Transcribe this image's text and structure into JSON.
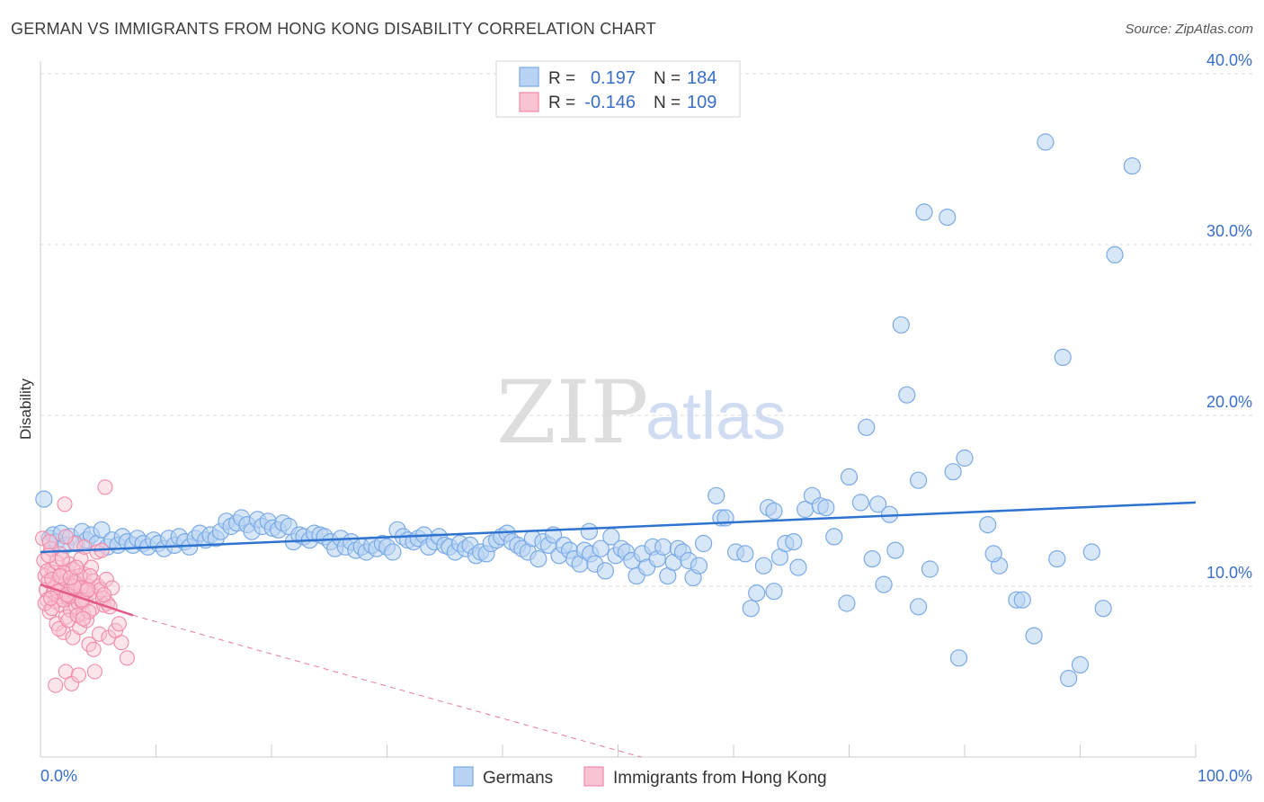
{
  "title": "GERMAN VS IMMIGRANTS FROM HONG KONG DISABILITY CORRELATION CHART",
  "source": "Source: ZipAtlas.com",
  "watermark": {
    "zip": "ZIP",
    "atlas": "atlas"
  },
  "colors": {
    "blue": "#7aaae6",
    "blue_fill": "#b8d3f3",
    "blue_line": "#2f73d0",
    "pink": "#f08aa8",
    "pink_fill": "#f8c4d3",
    "pink_line": "#e45a85",
    "tick_text": "#3a6ec9",
    "grid": "#d8d8d8"
  },
  "legend": {
    "rows": [
      {
        "r_label": "R =",
        "r_value": "0.197",
        "n_label": "N =",
        "n_value": "184"
      },
      {
        "r_label": "R =",
        "r_value": "-0.146",
        "n_label": "N =",
        "n_value": "109"
      }
    ]
  },
  "bottom_legend": [
    "Germans",
    "Immigrants from Hong Kong"
  ],
  "chart_data": {
    "type": "scatter",
    "title": "GERMAN VS IMMIGRANTS FROM HONG KONG DISABILITY CORRELATION CHART",
    "xlabel": "",
    "ylabel": "Disability",
    "xlim": [
      0,
      100
    ],
    "ylim": [
      0,
      40
    ],
    "x_tick_labels": [
      "0.0%",
      "100.0%"
    ],
    "y_ticks": [
      10,
      20,
      30,
      40
    ],
    "y_tick_labels": [
      "10.0%",
      "20.0%",
      "30.0%",
      "40.0%"
    ],
    "grid": true,
    "legend_position": "top-center",
    "series": [
      {
        "name": "Germans",
        "r": 0.197,
        "n": 184,
        "trend": {
          "x": [
            0,
            100
          ],
          "y": [
            12.0,
            14.9
          ]
        },
        "points": [
          [
            0.3,
            15.1
          ],
          [
            0.8,
            12.8
          ],
          [
            1.1,
            13.0
          ],
          [
            1.4,
            12.6
          ],
          [
            1.8,
            13.1
          ],
          [
            2.2,
            12.4
          ],
          [
            2.6,
            12.9
          ],
          [
            3.1,
            12.5
          ],
          [
            3.6,
            13.2
          ],
          [
            4.0,
            12.7
          ],
          [
            4.4,
            13.0
          ],
          [
            4.9,
            12.5
          ],
          [
            5.3,
            13.3
          ],
          [
            5.8,
            12.3
          ],
          [
            6.2,
            12.7
          ],
          [
            6.7,
            12.4
          ],
          [
            7.1,
            12.9
          ],
          [
            7.5,
            12.6
          ],
          [
            8.0,
            12.4
          ],
          [
            8.4,
            12.8
          ],
          [
            8.9,
            12.5
          ],
          [
            9.3,
            12.3
          ],
          [
            9.8,
            12.7
          ],
          [
            10.2,
            12.5
          ],
          [
            10.7,
            12.2
          ],
          [
            11.1,
            12.8
          ],
          [
            11.6,
            12.4
          ],
          [
            12.0,
            12.9
          ],
          [
            12.5,
            12.6
          ],
          [
            12.9,
            12.3
          ],
          [
            13.4,
            12.8
          ],
          [
            13.8,
            13.1
          ],
          [
            14.3,
            12.7
          ],
          [
            14.7,
            13.0
          ],
          [
            15.2,
            12.8
          ],
          [
            15.6,
            13.2
          ],
          [
            16.1,
            13.8
          ],
          [
            16.5,
            13.5
          ],
          [
            17.0,
            13.7
          ],
          [
            17.4,
            14.0
          ],
          [
            17.9,
            13.6
          ],
          [
            18.3,
            13.2
          ],
          [
            18.8,
            13.9
          ],
          [
            19.2,
            13.5
          ],
          [
            19.7,
            13.8
          ],
          [
            20.1,
            13.4
          ],
          [
            20.6,
            13.3
          ],
          [
            21.0,
            13.7
          ],
          [
            21.5,
            13.5
          ],
          [
            21.9,
            12.6
          ],
          [
            22.4,
            13.0
          ],
          [
            22.8,
            12.9
          ],
          [
            23.3,
            12.7
          ],
          [
            23.7,
            13.1
          ],
          [
            24.2,
            13.0
          ],
          [
            24.6,
            12.9
          ],
          [
            25.1,
            12.6
          ],
          [
            25.5,
            12.2
          ],
          [
            26.0,
            12.8
          ],
          [
            26.4,
            12.3
          ],
          [
            26.9,
            12.6
          ],
          [
            27.3,
            12.1
          ],
          [
            27.8,
            12.3
          ],
          [
            28.2,
            12.0
          ],
          [
            28.7,
            12.4
          ],
          [
            29.1,
            12.2
          ],
          [
            29.6,
            12.5
          ],
          [
            30.0,
            12.3
          ],
          [
            30.5,
            12.0
          ],
          [
            30.9,
            13.3
          ],
          [
            31.4,
            12.9
          ],
          [
            31.8,
            12.7
          ],
          [
            32.3,
            12.6
          ],
          [
            32.7,
            12.8
          ],
          [
            33.2,
            13.0
          ],
          [
            33.6,
            12.3
          ],
          [
            34.1,
            12.6
          ],
          [
            34.5,
            12.9
          ],
          [
            35.0,
            12.4
          ],
          [
            35.4,
            12.3
          ],
          [
            35.9,
            12.0
          ],
          [
            36.3,
            12.5
          ],
          [
            36.8,
            12.2
          ],
          [
            37.2,
            12.4
          ],
          [
            37.7,
            11.8
          ],
          [
            38.1,
            12.0
          ],
          [
            38.6,
            11.9
          ],
          [
            39.0,
            12.5
          ],
          [
            39.5,
            12.7
          ],
          [
            39.9,
            12.9
          ],
          [
            40.4,
            13.1
          ],
          [
            40.8,
            12.6
          ],
          [
            41.3,
            12.4
          ],
          [
            41.7,
            12.2
          ],
          [
            42.2,
            12.0
          ],
          [
            42.6,
            12.8
          ],
          [
            43.1,
            11.6
          ],
          [
            43.5,
            12.6
          ],
          [
            44.0,
            12.4
          ],
          [
            44.4,
            13.0
          ],
          [
            44.9,
            11.8
          ],
          [
            45.3,
            12.4
          ],
          [
            45.8,
            12.1
          ],
          [
            46.2,
            11.6
          ],
          [
            46.7,
            11.3
          ],
          [
            47.1,
            12.1
          ],
          [
            47.6,
            11.9
          ],
          [
            48.0,
            11.3
          ],
          [
            48.5,
            12.2
          ],
          [
            48.9,
            10.9
          ],
          [
            49.4,
            12.9
          ],
          [
            49.8,
            11.8
          ],
          [
            50.3,
            12.2
          ],
          [
            50.7,
            12.0
          ],
          [
            51.2,
            11.5
          ],
          [
            51.6,
            10.6
          ],
          [
            52.1,
            11.9
          ],
          [
            52.5,
            11.1
          ],
          [
            53.0,
            12.3
          ],
          [
            53.4,
            11.6
          ],
          [
            53.9,
            12.3
          ],
          [
            54.3,
            10.6
          ],
          [
            54.8,
            11.4
          ],
          [
            55.2,
            12.2
          ],
          [
            55.6,
            12.0
          ],
          [
            56.1,
            11.5
          ],
          [
            56.5,
            10.5
          ],
          [
            57.0,
            11.2
          ],
          [
            57.4,
            12.5
          ],
          [
            58.5,
            15.3
          ],
          [
            58.9,
            14.0
          ],
          [
            59.3,
            14.0
          ],
          [
            60.2,
            12.0
          ],
          [
            61.0,
            11.9
          ],
          [
            61.5,
            8.7
          ],
          [
            62.0,
            9.6
          ],
          [
            62.6,
            11.2
          ],
          [
            63.0,
            14.6
          ],
          [
            63.5,
            9.7
          ],
          [
            64.0,
            11.7
          ],
          [
            64.5,
            12.5
          ],
          [
            65.2,
            12.6
          ],
          [
            65.6,
            11.1
          ],
          [
            66.2,
            14.5
          ],
          [
            66.8,
            15.3
          ],
          [
            67.5,
            14.7
          ],
          [
            68.0,
            14.6
          ],
          [
            68.7,
            12.9
          ],
          [
            69.8,
            9.0
          ],
          [
            70.0,
            16.4
          ],
          [
            71.0,
            14.9
          ],
          [
            71.5,
            19.3
          ],
          [
            72.0,
            11.6
          ],
          [
            72.5,
            14.8
          ],
          [
            73.0,
            10.1
          ],
          [
            73.5,
            14.2
          ],
          [
            74.0,
            12.1
          ],
          [
            74.5,
            25.3
          ],
          [
            75.0,
            21.2
          ],
          [
            76.0,
            8.8
          ],
          [
            76.5,
            31.9
          ],
          [
            77.0,
            11.0
          ],
          [
            78.5,
            31.6
          ],
          [
            79.0,
            16.7
          ],
          [
            80.0,
            17.5
          ],
          [
            82.0,
            13.6
          ],
          [
            83.0,
            11.2
          ],
          [
            84.5,
            9.2
          ],
          [
            85.0,
            9.2
          ],
          [
            86.0,
            7.1
          ],
          [
            87.0,
            36.0
          ],
          [
            88.5,
            23.4
          ],
          [
            89.0,
            4.6
          ],
          [
            90.0,
            5.4
          ],
          [
            91.0,
            12.0
          ],
          [
            92.0,
            8.7
          ],
          [
            93.0,
            29.4
          ],
          [
            94.5,
            34.6
          ],
          [
            76.0,
            16.2
          ],
          [
            79.5,
            5.8
          ],
          [
            82.5,
            11.9
          ],
          [
            88.0,
            11.6
          ],
          [
            63.5,
            14.4
          ],
          [
            47.5,
            13.2
          ]
        ]
      },
      {
        "name": "Immigrants from Hong Kong",
        "r": -0.146,
        "n": 109,
        "trend": {
          "x": [
            0,
            8
          ],
          "y": [
            10.1,
            8.3
          ]
        },
        "trend_dashed": {
          "x": [
            8,
            52
          ],
          "y": [
            8.3,
            0
          ]
        },
        "points": [
          [
            0.2,
            12.8
          ],
          [
            0.3,
            11.5
          ],
          [
            0.4,
            10.6
          ],
          [
            0.5,
            9.8
          ],
          [
            0.6,
            9.2
          ],
          [
            0.7,
            10.3
          ],
          [
            0.8,
            8.5
          ],
          [
            0.9,
            12.2
          ],
          [
            1.0,
            11.0
          ],
          [
            1.1,
            9.6
          ],
          [
            1.2,
            10.8
          ],
          [
            1.3,
            9.1
          ],
          [
            1.4,
            7.8
          ],
          [
            1.5,
            10.2
          ],
          [
            1.6,
            9.4
          ],
          [
            1.7,
            11.9
          ],
          [
            1.8,
            8.9
          ],
          [
            1.9,
            10.5
          ],
          [
            2.0,
            7.3
          ],
          [
            2.1,
            9.7
          ],
          [
            2.2,
            8.2
          ],
          [
            2.3,
            10.9
          ],
          [
            2.4,
            9.3
          ],
          [
            2.5,
            11.3
          ],
          [
            2.6,
            8.6
          ],
          [
            2.7,
            10.1
          ],
          [
            2.8,
            7.0
          ],
          [
            2.9,
            9.5
          ],
          [
            3.0,
            12.5
          ],
          [
            3.1,
            8.8
          ],
          [
            3.2,
            10.4
          ],
          [
            3.3,
            9.0
          ],
          [
            3.4,
            7.6
          ],
          [
            3.5,
            11.6
          ],
          [
            3.6,
            9.9
          ],
          [
            3.7,
            8.4
          ],
          [
            3.8,
            10.7
          ],
          [
            3.9,
            9.2
          ],
          [
            4.0,
            8.0
          ],
          [
            4.1,
            10.0
          ],
          [
            4.2,
            6.6
          ],
          [
            4.3,
            9.6
          ],
          [
            4.4,
            11.1
          ],
          [
            4.5,
            8.7
          ],
          [
            4.6,
            10.3
          ],
          [
            4.7,
            5.0
          ],
          [
            4.8,
            9.4
          ],
          [
            4.9,
            12.0
          ],
          [
            5.0,
            10.0
          ],
          [
            5.1,
            7.2
          ],
          [
            5.2,
            9.8
          ],
          [
            5.3,
            12.1
          ],
          [
            5.4,
            9.3
          ],
          [
            5.5,
            8.9
          ],
          [
            5.6,
            15.8
          ],
          [
            5.7,
            10.4
          ],
          [
            5.8,
            9.0
          ],
          [
            5.9,
            7.0
          ],
          [
            6.0,
            8.8
          ],
          [
            6.2,
            9.9
          ],
          [
            0.4,
            9.0
          ],
          [
            0.6,
            10.9
          ],
          [
            0.8,
            12.6
          ],
          [
            1.0,
            8.7
          ],
          [
            1.2,
            9.9
          ],
          [
            1.4,
            11.4
          ],
          [
            1.6,
            7.5
          ],
          [
            1.8,
            10.1
          ],
          [
            2.0,
            9.2
          ],
          [
            2.2,
            12.9
          ],
          [
            2.4,
            8.0
          ],
          [
            2.6,
            9.8
          ],
          [
            2.8,
            11.0
          ],
          [
            3.0,
            9.6
          ],
          [
            3.2,
            8.3
          ],
          [
            3.4,
            10.6
          ],
          [
            3.6,
            9.1
          ],
          [
            3.8,
            12.3
          ],
          [
            4.0,
            9.7
          ],
          [
            4.2,
            8.5
          ],
          [
            1.3,
            4.2
          ],
          [
            2.2,
            5.0
          ],
          [
            2.7,
            4.3
          ],
          [
            3.3,
            4.8
          ],
          [
            2.1,
            14.8
          ],
          [
            6.5,
            7.4
          ],
          [
            7.0,
            6.7
          ],
          [
            7.5,
            5.8
          ],
          [
            6.8,
            7.8
          ],
          [
            4.6,
            6.3
          ],
          [
            1.0,
            10.4
          ],
          [
            1.5,
            9.7
          ],
          [
            2.0,
            10.8
          ],
          [
            2.5,
            9.4
          ],
          [
            3.0,
            10.2
          ],
          [
            3.5,
            9.9
          ],
          [
            0.9,
            9.3
          ],
          [
            1.7,
            10.6
          ],
          [
            2.3,
            9.5
          ],
          [
            2.9,
            10.0
          ],
          [
            3.6,
            9.2
          ],
          [
            4.1,
            9.8
          ],
          [
            0.7,
            11.8
          ],
          [
            1.9,
            11.6
          ],
          [
            2.6,
            10.5
          ],
          [
            3.1,
            11.1
          ],
          [
            3.7,
            8.1
          ],
          [
            4.3,
            10.6
          ],
          [
            5.5,
            9.5
          ]
        ]
      }
    ]
  }
}
